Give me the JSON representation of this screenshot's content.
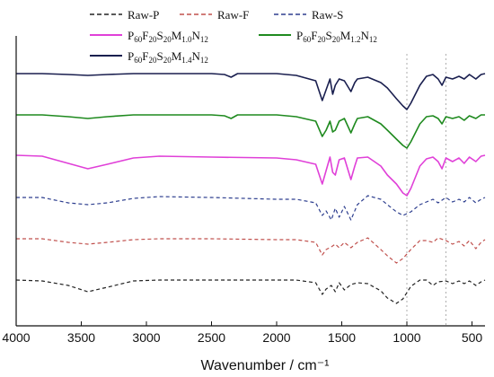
{
  "chart_data": {
    "type": "line",
    "xlabel": "Wavenumber / cm⁻¹",
    "xlim": [
      4000,
      400
    ],
    "x_reversed": true,
    "xticks": [
      4000,
      3500,
      3000,
      2500,
      2000,
      1500,
      1000,
      500
    ],
    "yticks_shown": false,
    "grid": false,
    "reference_lines": [
      1000,
      700
    ],
    "legend_placement": "top",
    "series": [
      {
        "name": "Raw-P",
        "color": "#222222",
        "dash": true,
        "points": [
          [
            4000,
            312
          ],
          [
            3800,
            313
          ],
          [
            3600,
            318
          ],
          [
            3450,
            325
          ],
          [
            3300,
            320
          ],
          [
            3100,
            313
          ],
          [
            2900,
            312
          ],
          [
            2500,
            312
          ],
          [
            2000,
            312
          ],
          [
            1850,
            312
          ],
          [
            1700,
            315
          ],
          [
            1650,
            328
          ],
          [
            1620,
            322
          ],
          [
            1580,
            318
          ],
          [
            1550,
            325
          ],
          [
            1520,
            315
          ],
          [
            1480,
            323
          ],
          [
            1430,
            317
          ],
          [
            1380,
            315
          ],
          [
            1300,
            316
          ],
          [
            1200,
            324
          ],
          [
            1150,
            332
          ],
          [
            1080,
            338
          ],
          [
            1030,
            333
          ],
          [
            970,
            319
          ],
          [
            900,
            312
          ],
          [
            850,
            312
          ],
          [
            800,
            318
          ],
          [
            760,
            314
          ],
          [
            700,
            313
          ],
          [
            650,
            316
          ],
          [
            600,
            313
          ],
          [
            560,
            316
          ],
          [
            520,
            313
          ],
          [
            470,
            318
          ],
          [
            430,
            314
          ],
          [
            400,
            312
          ]
        ]
      },
      {
        "name": "Raw-F",
        "color": "#c0504d",
        "dash": true,
        "points": [
          [
            4000,
            266
          ],
          [
            3800,
            266
          ],
          [
            3600,
            270
          ],
          [
            3450,
            272
          ],
          [
            3300,
            270
          ],
          [
            3100,
            267
          ],
          [
            2900,
            266
          ],
          [
            2500,
            266
          ],
          [
            2000,
            267
          ],
          [
            1850,
            267
          ],
          [
            1700,
            270
          ],
          [
            1650,
            284
          ],
          [
            1620,
            278
          ],
          [
            1580,
            275
          ],
          [
            1550,
            272
          ],
          [
            1520,
            276
          ],
          [
            1480,
            270
          ],
          [
            1430,
            276
          ],
          [
            1380,
            270
          ],
          [
            1300,
            265
          ],
          [
            1200,
            278
          ],
          [
            1150,
            285
          ],
          [
            1080,
            293
          ],
          [
            1030,
            288
          ],
          [
            970,
            278
          ],
          [
            900,
            268
          ],
          [
            850,
            268
          ],
          [
            800,
            270
          ],
          [
            760,
            265
          ],
          [
            700,
            268
          ],
          [
            650,
            272
          ],
          [
            600,
            269
          ],
          [
            560,
            274
          ],
          [
            520,
            268
          ],
          [
            470,
            277
          ],
          [
            430,
            270
          ],
          [
            400,
            267
          ]
        ]
      },
      {
        "name": "Raw-S",
        "color": "#2e3f8f",
        "dash": true,
        "points": [
          [
            4000,
            220
          ],
          [
            3800,
            220
          ],
          [
            3600,
            226
          ],
          [
            3450,
            228
          ],
          [
            3300,
            226
          ],
          [
            3100,
            221
          ],
          [
            2900,
            219
          ],
          [
            2500,
            220
          ],
          [
            2000,
            222
          ],
          [
            1850,
            222
          ],
          [
            1700,
            226
          ],
          [
            1650,
            240
          ],
          [
            1620,
            235
          ],
          [
            1580,
            245
          ],
          [
            1550,
            232
          ],
          [
            1520,
            242
          ],
          [
            1480,
            230
          ],
          [
            1430,
            245
          ],
          [
            1380,
            228
          ],
          [
            1300,
            218
          ],
          [
            1200,
            222
          ],
          [
            1150,
            228
          ],
          [
            1080,
            236
          ],
          [
            1030,
            240
          ],
          [
            970,
            236
          ],
          [
            900,
            228
          ],
          [
            850,
            225
          ],
          [
            800,
            222
          ],
          [
            760,
            226
          ],
          [
            700,
            220
          ],
          [
            650,
            225
          ],
          [
            600,
            222
          ],
          [
            560,
            225
          ],
          [
            520,
            220
          ],
          [
            470,
            226
          ],
          [
            430,
            222
          ],
          [
            400,
            220
          ]
        ]
      },
      {
        "name": "P60F20S20M1.0N12",
        "name_parts": [
          "P",
          "60",
          "F",
          "20",
          "S",
          "20",
          "M",
          "1.0",
          "N",
          "12"
        ],
        "color": "#e040d8",
        "dash": false,
        "points": [
          [
            4000,
            173
          ],
          [
            3800,
            174
          ],
          [
            3650,
            180
          ],
          [
            3450,
            188
          ],
          [
            3300,
            183
          ],
          [
            3100,
            176
          ],
          [
            2900,
            174
          ],
          [
            2500,
            175
          ],
          [
            2000,
            176
          ],
          [
            1850,
            178
          ],
          [
            1700,
            183
          ],
          [
            1650,
            205
          ],
          [
            1620,
            190
          ],
          [
            1590,
            175
          ],
          [
            1570,
            192
          ],
          [
            1550,
            195
          ],
          [
            1520,
            178
          ],
          [
            1480,
            176
          ],
          [
            1430,
            200
          ],
          [
            1400,
            185
          ],
          [
            1380,
            176
          ],
          [
            1300,
            175
          ],
          [
            1200,
            185
          ],
          [
            1150,
            195
          ],
          [
            1080,
            205
          ],
          [
            1030,
            215
          ],
          [
            1000,
            218
          ],
          [
            970,
            210
          ],
          [
            900,
            185
          ],
          [
            850,
            177
          ],
          [
            800,
            175
          ],
          [
            760,
            180
          ],
          [
            730,
            188
          ],
          [
            700,
            176
          ],
          [
            650,
            180
          ],
          [
            600,
            176
          ],
          [
            560,
            182
          ],
          [
            520,
            175
          ],
          [
            470,
            180
          ],
          [
            430,
            174
          ],
          [
            400,
            173
          ]
        ]
      },
      {
        "name": "P60F20S20M1.2N12",
        "name_parts": [
          "P",
          "60",
          "F",
          "20",
          "S",
          "20",
          "M",
          "1.2",
          "N",
          "12"
        ],
        "color": "#1f8a1f",
        "dash": false,
        "points": [
          [
            4000,
            128
          ],
          [
            3800,
            128
          ],
          [
            3600,
            130
          ],
          [
            3450,
            132
          ],
          [
            3300,
            130
          ],
          [
            3100,
            128
          ],
          [
            2900,
            128
          ],
          [
            2500,
            128
          ],
          [
            2400,
            129
          ],
          [
            2350,
            132
          ],
          [
            2300,
            128
          ],
          [
            2000,
            128
          ],
          [
            1850,
            130
          ],
          [
            1700,
            135
          ],
          [
            1650,
            152
          ],
          [
            1620,
            145
          ],
          [
            1590,
            135
          ],
          [
            1570,
            147
          ],
          [
            1550,
            145
          ],
          [
            1520,
            135
          ],
          [
            1480,
            132
          ],
          [
            1430,
            148
          ],
          [
            1400,
            138
          ],
          [
            1380,
            132
          ],
          [
            1300,
            130
          ],
          [
            1200,
            138
          ],
          [
            1150,
            145
          ],
          [
            1080,
            155
          ],
          [
            1030,
            162
          ],
          [
            1000,
            165
          ],
          [
            970,
            158
          ],
          [
            900,
            138
          ],
          [
            850,
            130
          ],
          [
            800,
            129
          ],
          [
            760,
            132
          ],
          [
            730,
            138
          ],
          [
            700,
            130
          ],
          [
            650,
            132
          ],
          [
            600,
            130
          ],
          [
            560,
            134
          ],
          [
            520,
            129
          ],
          [
            470,
            132
          ],
          [
            430,
            128
          ],
          [
            400,
            128
          ]
        ]
      },
      {
        "name": "P60F20S20M1.4N12",
        "name_parts": [
          "P",
          "60",
          "F",
          "20",
          "S",
          "20",
          "M",
          "1.4",
          "N",
          "12"
        ],
        "color": "#1a1f4f",
        "dash": false,
        "points": [
          [
            4000,
            82
          ],
          [
            3800,
            82
          ],
          [
            3600,
            83
          ],
          [
            3450,
            84
          ],
          [
            3300,
            83
          ],
          [
            3100,
            82
          ],
          [
            2900,
            82
          ],
          [
            2500,
            82
          ],
          [
            2400,
            83
          ],
          [
            2350,
            86
          ],
          [
            2300,
            82
          ],
          [
            2000,
            82
          ],
          [
            1850,
            84
          ],
          [
            1700,
            90
          ],
          [
            1650,
            112
          ],
          [
            1620,
            100
          ],
          [
            1590,
            88
          ],
          [
            1570,
            105
          ],
          [
            1550,
            95
          ],
          [
            1520,
            88
          ],
          [
            1480,
            90
          ],
          [
            1430,
            102
          ],
          [
            1400,
            92
          ],
          [
            1380,
            88
          ],
          [
            1300,
            86
          ],
          [
            1200,
            92
          ],
          [
            1150,
            98
          ],
          [
            1080,
            110
          ],
          [
            1030,
            118
          ],
          [
            1000,
            122
          ],
          [
            970,
            115
          ],
          [
            900,
            95
          ],
          [
            850,
            85
          ],
          [
            800,
            83
          ],
          [
            760,
            88
          ],
          [
            730,
            95
          ],
          [
            700,
            86
          ],
          [
            650,
            88
          ],
          [
            600,
            85
          ],
          [
            560,
            88
          ],
          [
            520,
            83
          ],
          [
            470,
            88
          ],
          [
            430,
            83
          ],
          [
            400,
            82
          ]
        ]
      }
    ]
  }
}
